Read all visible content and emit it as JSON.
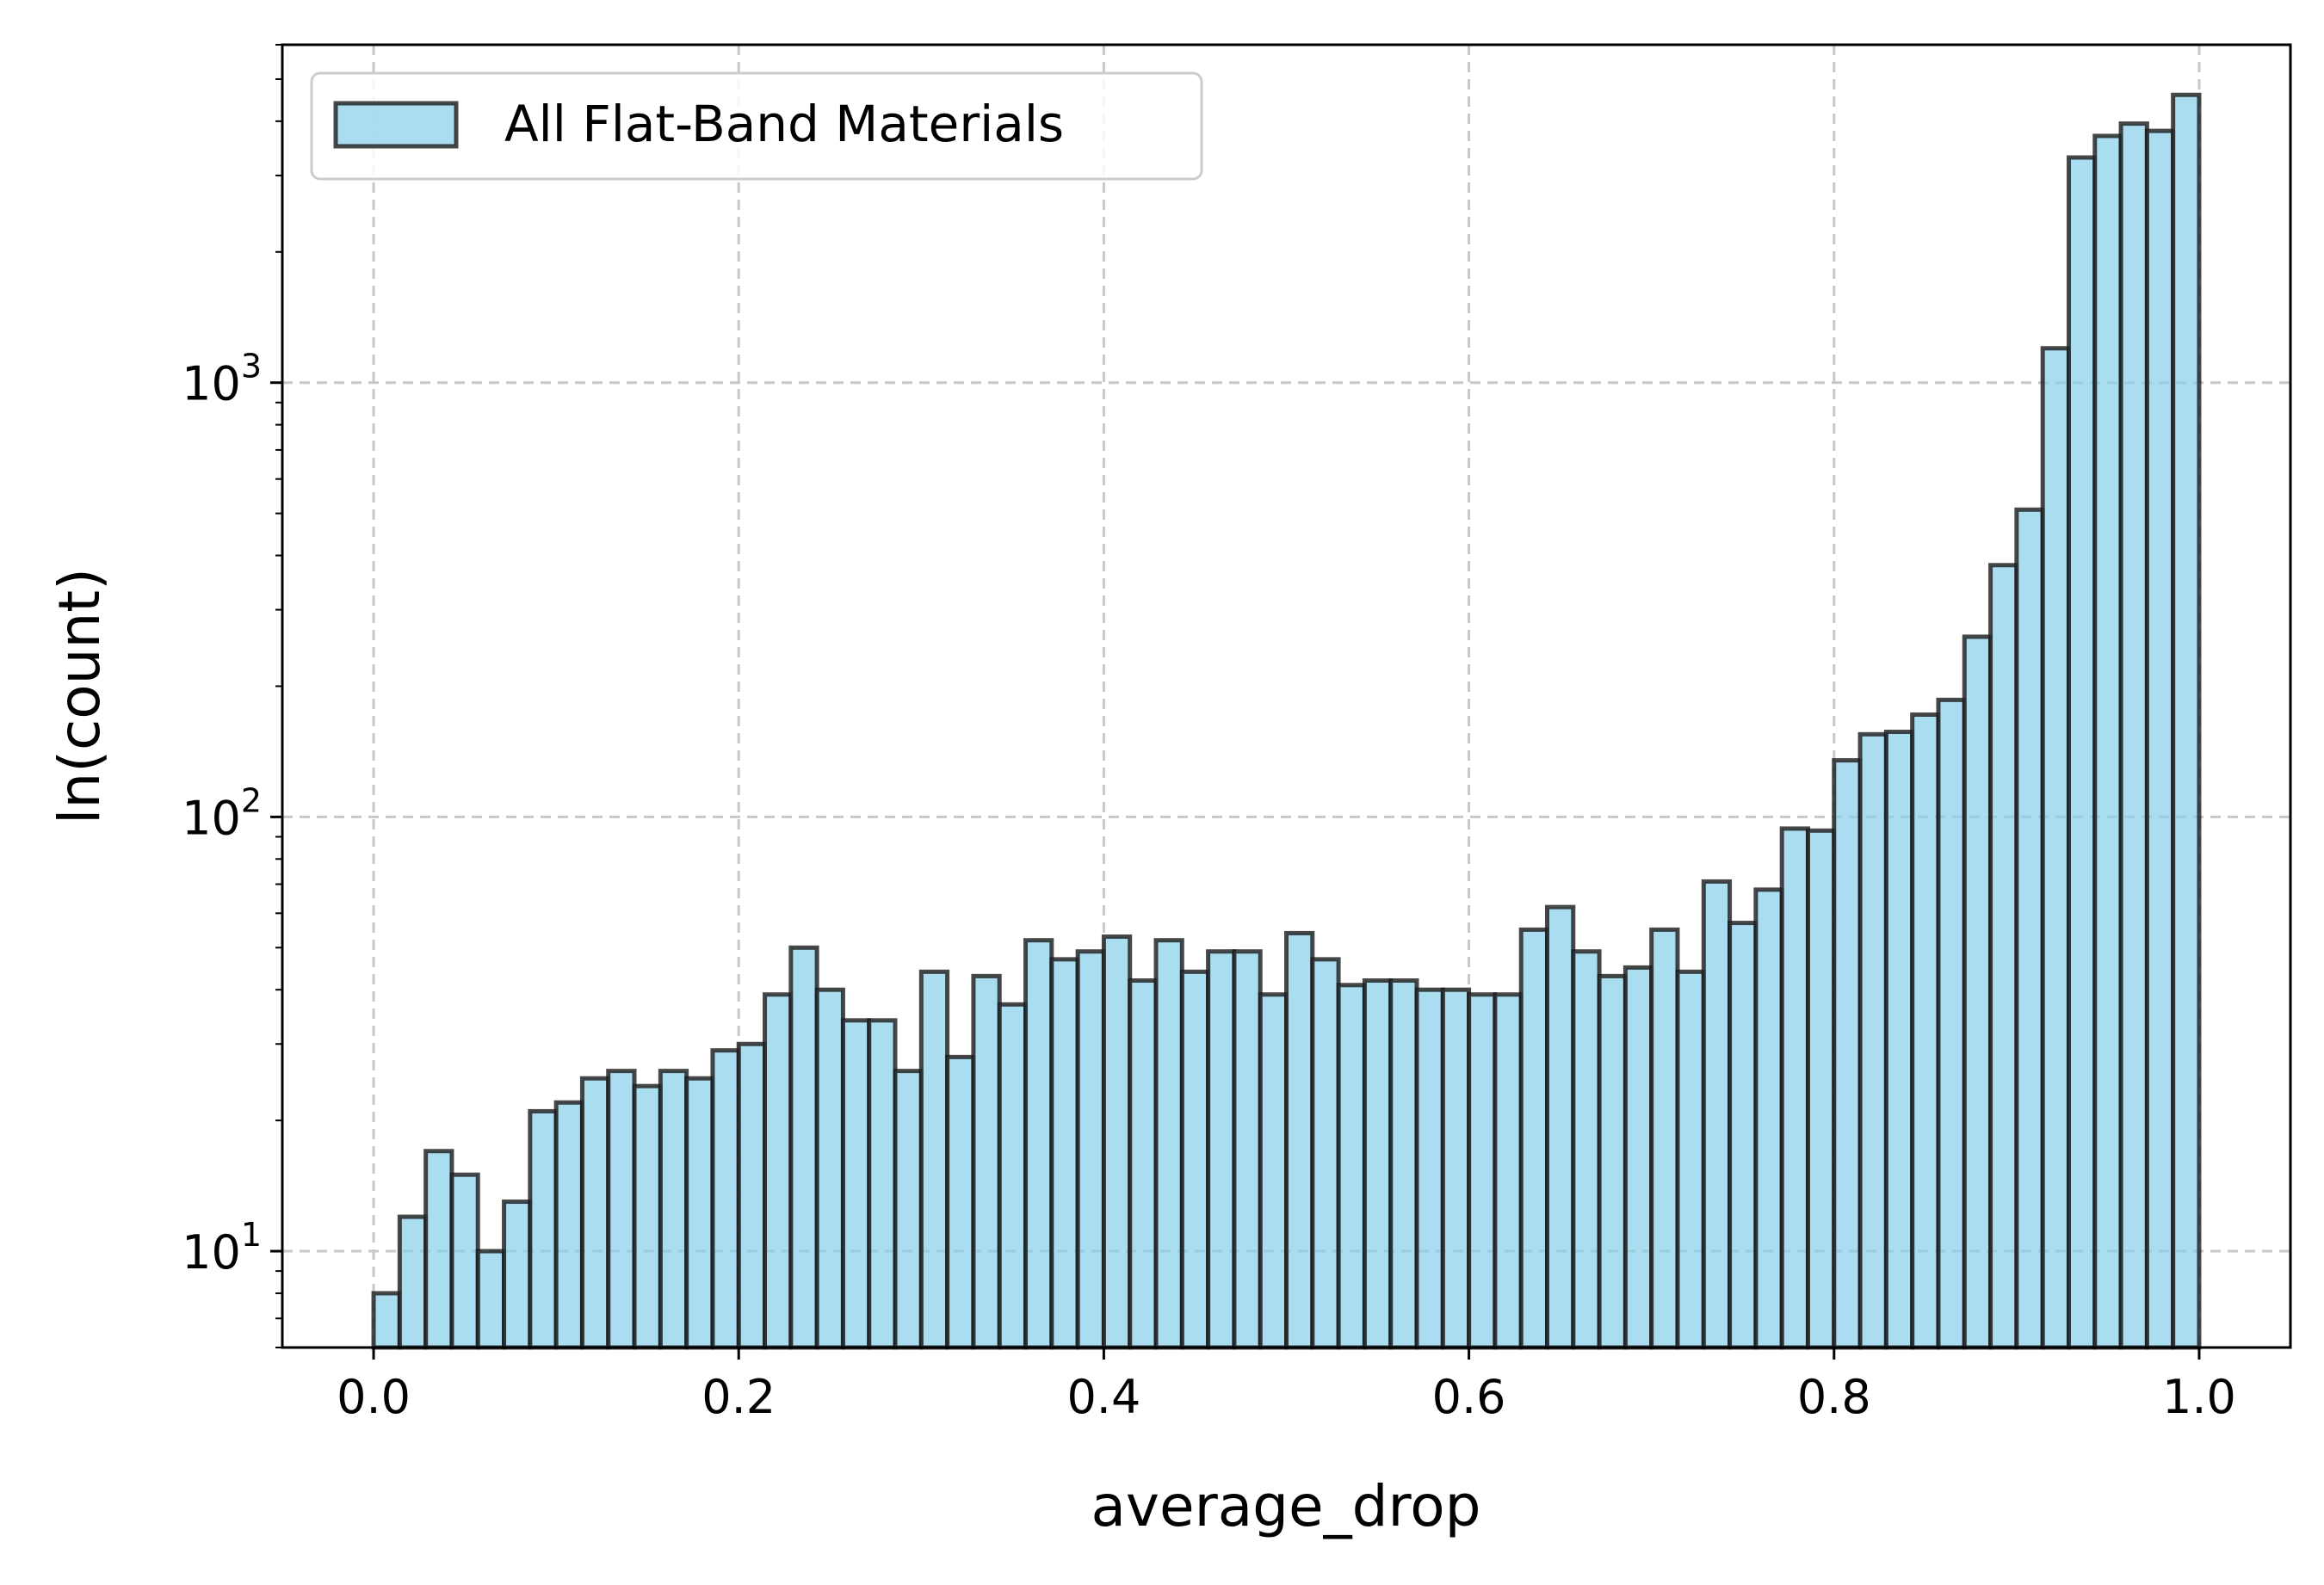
{
  "chart_data": {
    "type": "bar",
    "subtype": "histogram",
    "title": "",
    "xlabel": "average_drop",
    "ylabel": "ln(count)",
    "y_scale": "log",
    "xlim": [
      -0.05,
      1.05
    ],
    "ylim": [
      6,
      6000
    ],
    "grid": true,
    "legend_position": "upper-left",
    "bar_color": "#87CEEB",
    "edge_color": "#1a1a1a",
    "grid_color": "#c8c8c8",
    "x_ticks": [
      {
        "value": 0.0,
        "label": "0.0"
      },
      {
        "value": 0.2,
        "label": "0.2"
      },
      {
        "value": 0.4,
        "label": "0.4"
      },
      {
        "value": 0.6,
        "label": "0.6"
      },
      {
        "value": 0.8,
        "label": "0.8"
      },
      {
        "value": 1.0,
        "label": "1.0"
      }
    ],
    "y_ticks": [
      {
        "value": 10,
        "base": "10",
        "exp": "1"
      },
      {
        "value": 100,
        "base": "10",
        "exp": "2"
      },
      {
        "value": 1000,
        "base": "10",
        "exp": "3"
      }
    ],
    "bins": {
      "start": 0.0,
      "end": 1.0,
      "count": 70
    },
    "series": [
      {
        "name": "All Flat-Band Materials",
        "values": [
          8,
          12,
          17,
          15,
          10,
          13,
          21,
          22,
          25,
          26,
          24,
          26,
          25,
          29,
          30,
          39,
          50,
          40,
          34,
          34,
          26,
          44,
          28,
          43,
          37,
          52,
          47,
          49,
          53,
          42,
          52,
          44,
          49,
          49,
          39,
          54,
          47,
          41,
          42,
          42,
          40,
          40,
          39,
          39,
          55,
          62,
          49,
          43,
          45,
          55,
          44,
          71,
          57,
          68,
          94,
          93,
          135,
          155,
          157,
          172,
          186,
          260,
          380,
          510,
          1200,
          3300,
          3700,
          3950,
          3800,
          4600
        ]
      }
    ]
  }
}
